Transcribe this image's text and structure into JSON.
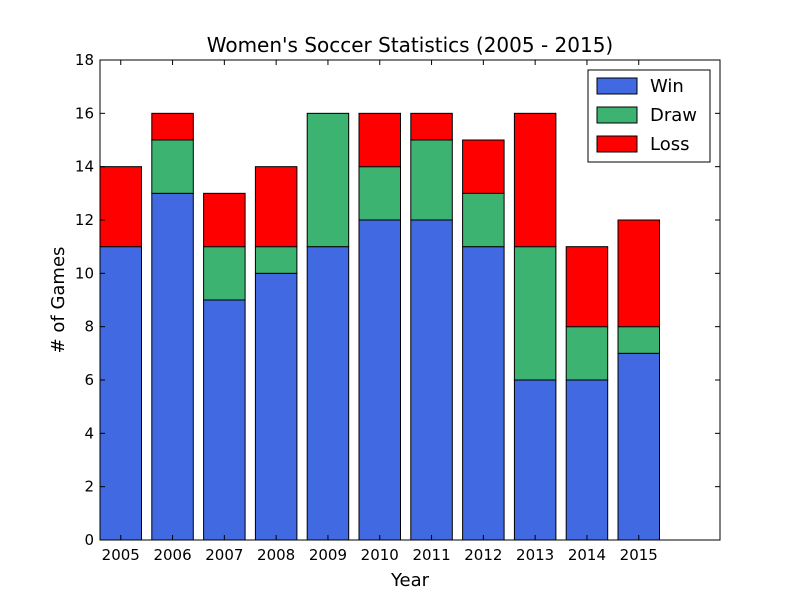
{
  "chart_data": {
    "type": "bar",
    "stacked": true,
    "title": "Women's Soccer Statistics (2005 - 2015)",
    "xlabel": "Year",
    "ylabel": "# of Games",
    "categories": [
      "2005",
      "2006",
      "2007",
      "2008",
      "2009",
      "2010",
      "2011",
      "2012",
      "2013",
      "2014",
      "2015"
    ],
    "ylim": [
      0,
      18
    ],
    "yticks": [
      "0",
      "2",
      "4",
      "6",
      "8",
      "10",
      "12",
      "14",
      "16",
      "18"
    ],
    "series": [
      {
        "name": "Win",
        "color": "#4169e1",
        "values": [
          11,
          13,
          9,
          10,
          11,
          12,
          12,
          11,
          6,
          6,
          7
        ]
      },
      {
        "name": "Draw",
        "color": "#3cb371",
        "values": [
          0,
          2,
          2,
          1,
          5,
          2,
          3,
          2,
          5,
          2,
          1
        ]
      },
      {
        "name": "Loss",
        "color": "#ff0000",
        "values": [
          3,
          1,
          2,
          3,
          0,
          2,
          1,
          2,
          5,
          3,
          4
        ]
      }
    ],
    "legend": {
      "position": "top-right",
      "entries": [
        "Win",
        "Draw",
        "Loss"
      ]
    },
    "grid": false
  }
}
